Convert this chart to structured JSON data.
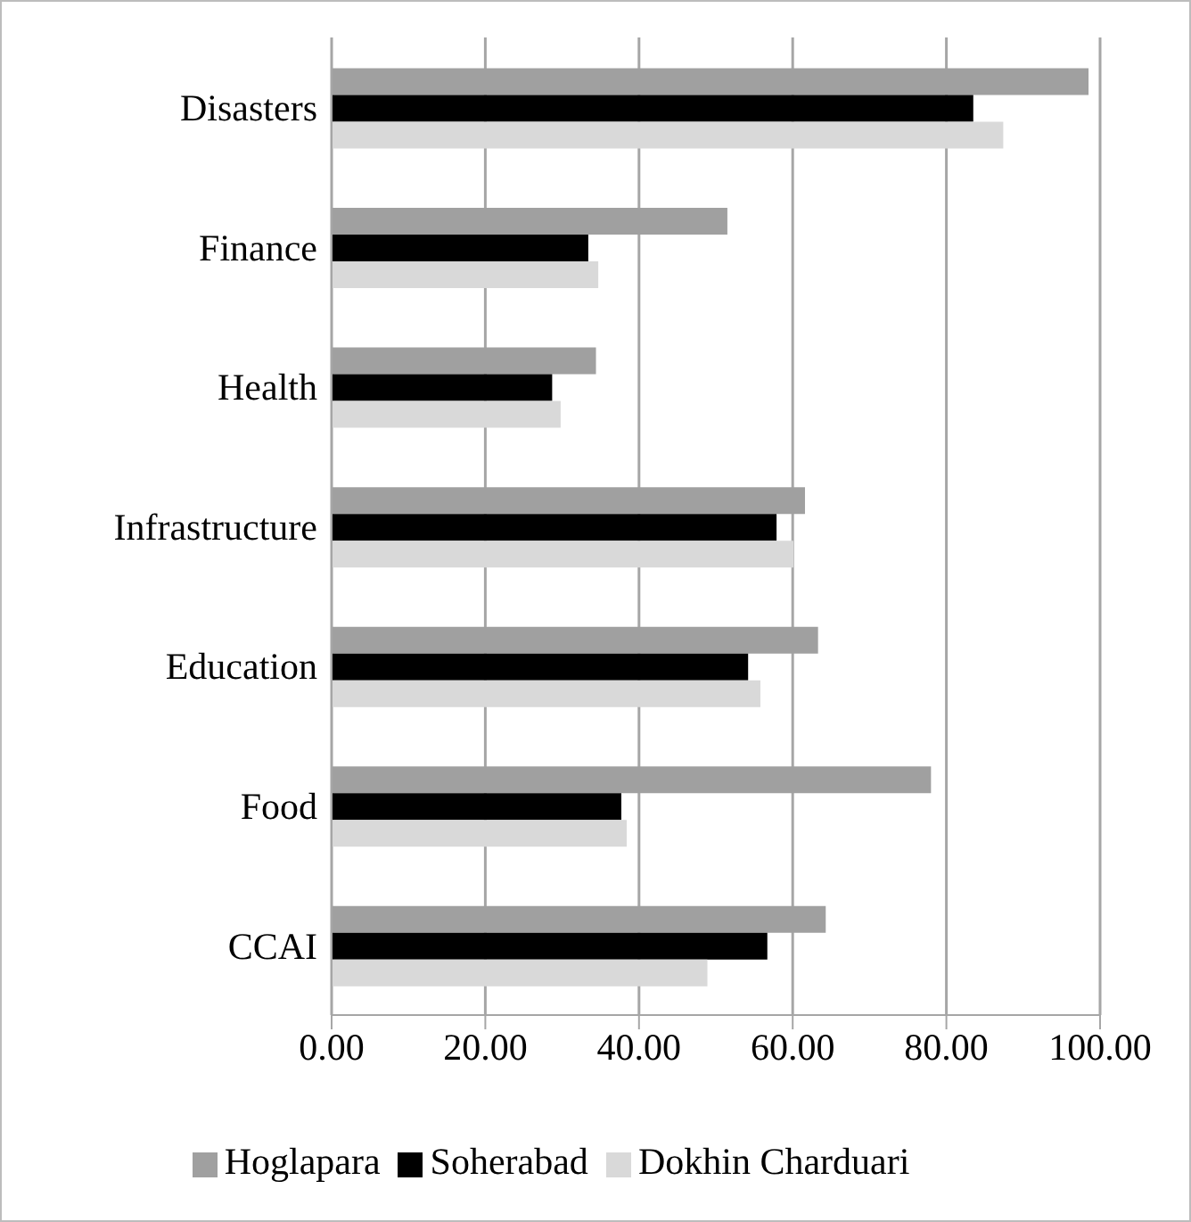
{
  "chart_data": {
    "type": "bar",
    "orientation": "horizontal",
    "categories": [
      "Disasters",
      "Finance",
      "Health",
      "Infrastructure",
      "Education",
      "Food",
      "CCAI"
    ],
    "series": [
      {
        "name": "Hoglapara",
        "color": "#a0a0a0",
        "values": [
          98.5,
          51.5,
          34.4,
          61.6,
          63.3,
          78.0,
          64.3
        ]
      },
      {
        "name": "Soherabad",
        "color": "#000000",
        "values": [
          83.5,
          33.4,
          28.7,
          57.9,
          54.2,
          37.7,
          56.7
        ]
      },
      {
        "name": "Dokhin Charduari",
        "color": "#d9d9d9",
        "values": [
          87.4,
          34.7,
          29.8,
          60.1,
          55.8,
          38.4,
          48.9
        ]
      }
    ],
    "xlim": [
      0,
      100
    ],
    "xticks": [
      {
        "value": 0,
        "label": "0.00"
      },
      {
        "value": 20,
        "label": "20.00"
      },
      {
        "value": 40,
        "label": "40.00"
      },
      {
        "value": 60,
        "label": "60.00"
      },
      {
        "value": 80,
        "label": "80.00"
      },
      {
        "value": 100,
        "label": "100.00"
      }
    ],
    "grid": "x",
    "legend": "bottom"
  }
}
